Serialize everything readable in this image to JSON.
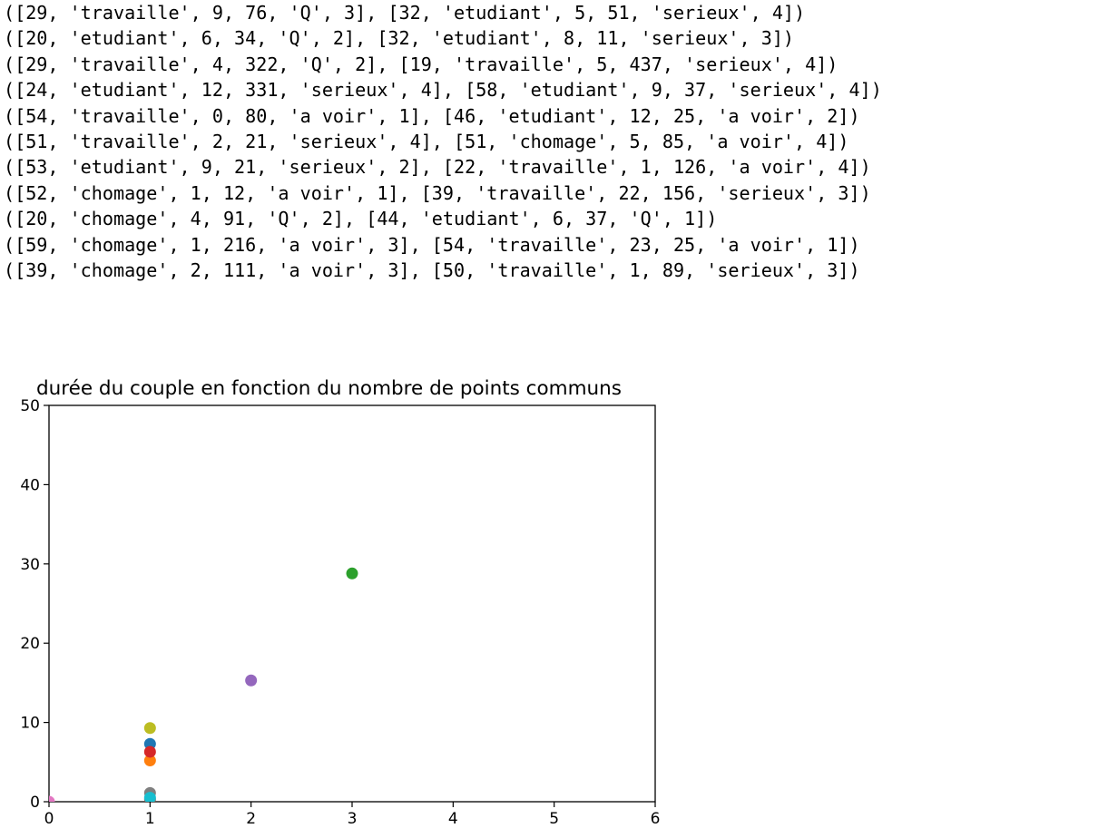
{
  "output": {
    "lines": [
      "([29, 'travaille', 9, 76, 'Q', 3], [32, 'etudiant', 5, 51, 'serieux', 4])",
      "([20, 'etudiant', 6, 34, 'Q', 2], [32, 'etudiant', 8, 11, 'serieux', 3])",
      "([29, 'travaille', 4, 322, 'Q', 2], [19, 'travaille', 5, 437, 'serieux', 4])",
      "([24, 'etudiant', 12, 331, 'serieux', 4], [58, 'etudiant', 9, 37, 'serieux', 4])",
      "([54, 'travaille', 0, 80, 'a voir', 1], [46, 'etudiant', 12, 25, 'a voir', 2])",
      "([51, 'travaille', 2, 21, 'serieux', 4], [51, 'chomage', 5, 85, 'a voir', 4])",
      "([53, 'etudiant', 9, 21, 'serieux', 2], [22, 'travaille', 1, 126, 'a voir', 4])",
      "([52, 'chomage', 1, 12, 'a voir', 1], [39, 'travaille', 22, 156, 'serieux', 3])",
      "([20, 'chomage', 4, 91, 'Q', 2], [44, 'etudiant', 6, 37, 'Q', 1])",
      "([59, 'chomage', 1, 216, 'a voir', 3], [54, 'travaille', 23, 25, 'a voir', 1])",
      "([39, 'chomage', 2, 111, 'a voir', 3], [50, 'travaille', 1, 89, 'serieux', 3])"
    ]
  },
  "chart_data": {
    "type": "scatter",
    "title": "durée du couple en fonction du nombre de points communs",
    "xlabel": "",
    "ylabel": "",
    "xlim": [
      0,
      6
    ],
    "ylim": [
      0,
      50
    ],
    "xticks": [
      "0",
      "1",
      "2",
      "3",
      "4",
      "5",
      "6"
    ],
    "yticks": [
      "0",
      "10",
      "20",
      "30",
      "40",
      "50"
    ],
    "grid": false,
    "points": [
      {
        "x": 1,
        "y": 7.3,
        "color": "#1f77b4"
      },
      {
        "x": 1,
        "y": 5.2,
        "color": "#ff7f0e"
      },
      {
        "x": 3,
        "y": 28.8,
        "color": "#2ca02c"
      },
      {
        "x": 1,
        "y": 6.3,
        "color": "#d62728"
      },
      {
        "x": 2,
        "y": 15.3,
        "color": "#9467bd"
      },
      {
        "x": 1,
        "y": 0.3,
        "color": "#8c564b"
      },
      {
        "x": 0,
        "y": 0.0,
        "color": "#e377c2"
      },
      {
        "x": 1,
        "y": 1.1,
        "color": "#7f7f7f"
      },
      {
        "x": 1,
        "y": 9.3,
        "color": "#bcbd22"
      },
      {
        "x": 1,
        "y": 0.5,
        "color": "#17becf"
      }
    ]
  }
}
